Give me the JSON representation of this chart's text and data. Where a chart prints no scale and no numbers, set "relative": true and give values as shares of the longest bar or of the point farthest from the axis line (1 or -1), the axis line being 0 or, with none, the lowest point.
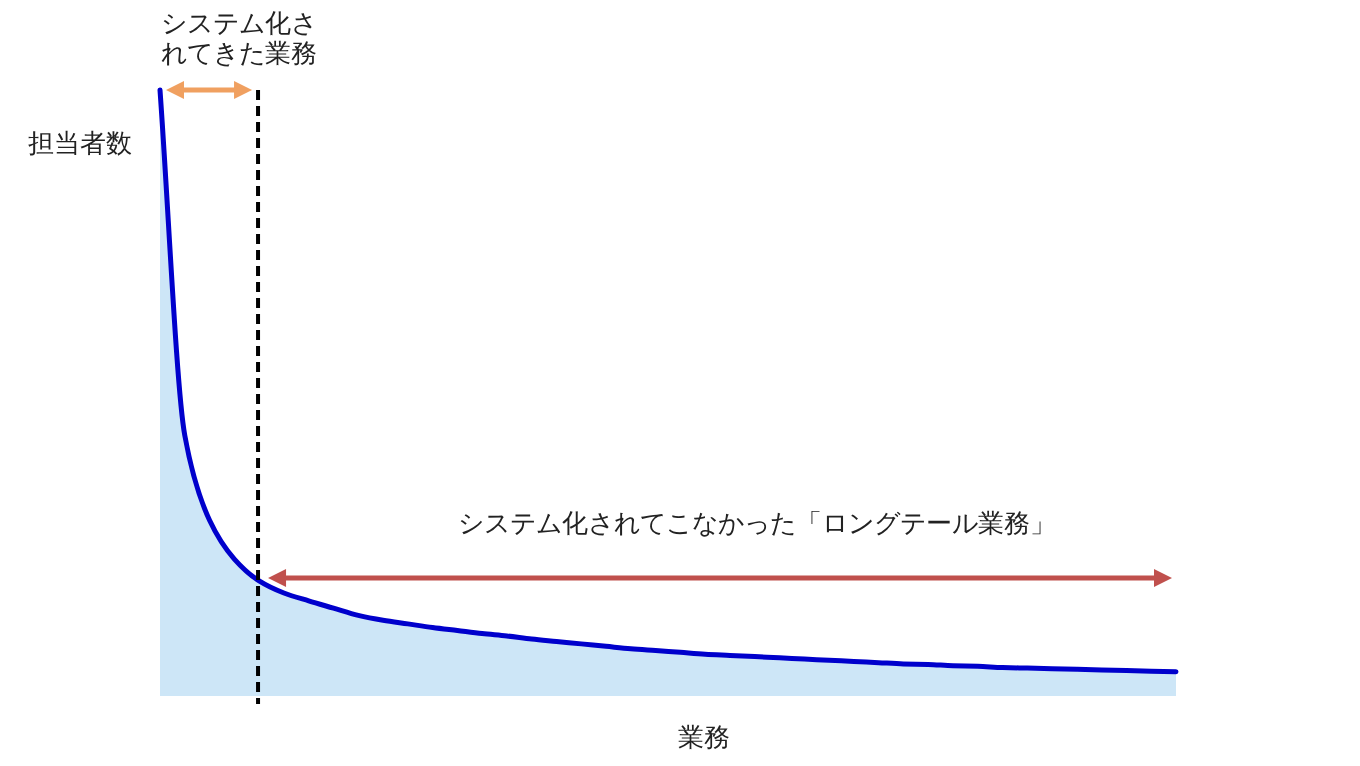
{
  "chart_data": {
    "type": "area",
    "relative": true,
    "xlabel": "業務",
    "ylabel": "担当者数",
    "categories": [
      null,
      null,
      null,
      null,
      null,
      null,
      null,
      null,
      null,
      null,
      null,
      null,
      null,
      null,
      null,
      null,
      null,
      null,
      null,
      null,
      null,
      null,
      null,
      null,
      null,
      null,
      null,
      null,
      null,
      null,
      null,
      null,
      null,
      null,
      null,
      null,
      null,
      null,
      null,
      null,
      null,
      null
    ],
    "series": [
      {
        "color": "#0000cc",
        "values": [
          1.0,
          0.43,
          0.29,
          0.226,
          0.19,
          0.17,
          0.157,
          0.145,
          0.133,
          0.125,
          0.119,
          0.113,
          0.108,
          0.103,
          0.099,
          0.094,
          0.09,
          0.086,
          0.082,
          0.078,
          0.075,
          0.072,
          0.069,
          0.067,
          0.065,
          0.063,
          0.061,
          0.059,
          0.057,
          0.055,
          0.053,
          0.052,
          0.05,
          0.049,
          0.047,
          0.046,
          0.045,
          0.044,
          0.043,
          0.042,
          0.041,
          0.04
        ]
      }
    ],
    "annotations": [
      "システム化されてきた業務",
      "システム化されてこなかった「ロングテール業務」"
    ]
  }
}
